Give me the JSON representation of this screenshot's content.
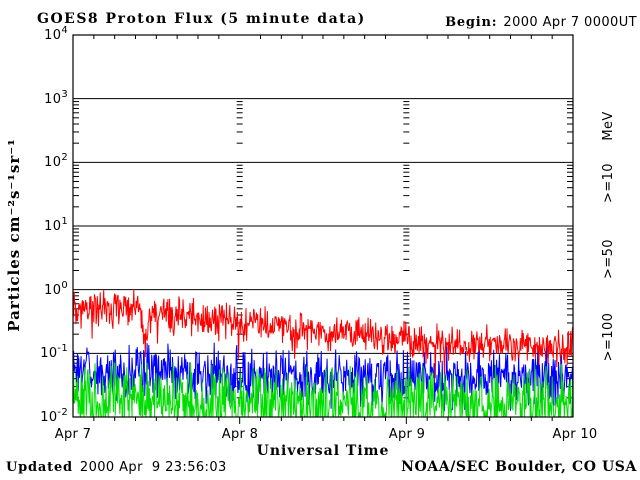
{
  "header": {
    "title": "GOES8 Proton Flux (5 minute data)",
    "begin_label": "Begin:",
    "begin_value": "2000 Apr 7 0000UT"
  },
  "footer": {
    "updated_label": "Updated",
    "updated_value": "2000 Apr  9 23:56:03",
    "credit": "NOAA/SEC Boulder, CO USA"
  },
  "chart_data": {
    "type": "line",
    "yscale": "log",
    "title": "GOES8 Proton Flux (5 minute data)",
    "xlabel": "Universal Time",
    "ylabel": "Particles cm⁻²s⁻¹sr⁻¹",
    "ylim": [
      0.01,
      10000
    ],
    "x_range_days": [
      0,
      3
    ],
    "sample_minutes": 5,
    "grid": {
      "horizontal": "solid line at each decade",
      "vertical": "minor-tick dash columns at day boundaries"
    },
    "x_ticks": [
      {
        "label": "Apr 7",
        "day": 0
      },
      {
        "label": "Apr 8",
        "day": 1
      },
      {
        "label": "Apr 9",
        "day": 2
      },
      {
        "label": "Apr 10",
        "day": 3
      }
    ],
    "y_ticks": [
      {
        "base": "10",
        "exp": "4",
        "value": 10000
      },
      {
        "base": "10",
        "exp": "3",
        "value": 1000
      },
      {
        "base": "10",
        "exp": "2",
        "value": 100
      },
      {
        "base": "10",
        "exp": "1",
        "value": 10
      },
      {
        "base": "10",
        "exp": "0",
        "value": 1
      },
      {
        "base": "10",
        "exp": "-1",
        "value": 0.1
      },
      {
        "base": "10",
        "exp": "-2",
        "value": 0.01
      }
    ],
    "legend": {
      "units_label": "MeV",
      "entries": [
        {
          "label": ">=10",
          "color": "#ff0000"
        },
        {
          "label": ">=50",
          "color": "#0000ff"
        },
        {
          "label": ">=100",
          "color": "#00dd00"
        }
      ]
    },
    "series": [
      {
        "name": "protons_gte_10_MeV",
        "label": ">=10",
        "color": "#ff0000",
        "trend_hours": [
          0,
          6,
          9,
          10,
          10.5,
          11,
          12,
          18,
          24,
          30,
          36,
          42,
          48,
          54,
          60,
          66,
          72
        ],
        "trend_flux": [
          0.55,
          0.5,
          0.5,
          0.35,
          0.12,
          0.4,
          0.42,
          0.36,
          0.3,
          0.26,
          0.22,
          0.19,
          0.16,
          0.14,
          0.14,
          0.13,
          0.13
        ],
        "noise_log": 0.17,
        "dip_chance": 0.03,
        "dip_depth": 0.3
      },
      {
        "name": "protons_gte_50_MeV",
        "label": ">=50",
        "color": "#0000ff",
        "trend_hours": [
          0,
          12,
          24,
          36,
          48,
          60,
          72
        ],
        "trend_flux": [
          0.055,
          0.05,
          0.046,
          0.043,
          0.04,
          0.042,
          0.04
        ],
        "noise_log": 0.27,
        "dip_chance": 0,
        "dip_depth": 0
      },
      {
        "name": "protons_gte_100_MeV",
        "label": ">=100",
        "color": "#00dd00",
        "trend_hours": [
          0,
          12,
          24,
          36,
          48,
          60,
          72
        ],
        "trend_flux": [
          0.02,
          0.018,
          0.017,
          0.017,
          0.016,
          0.016,
          0.016
        ],
        "noise_log": 0.33,
        "dip_chance": 0,
        "dip_depth": 0
      }
    ]
  }
}
